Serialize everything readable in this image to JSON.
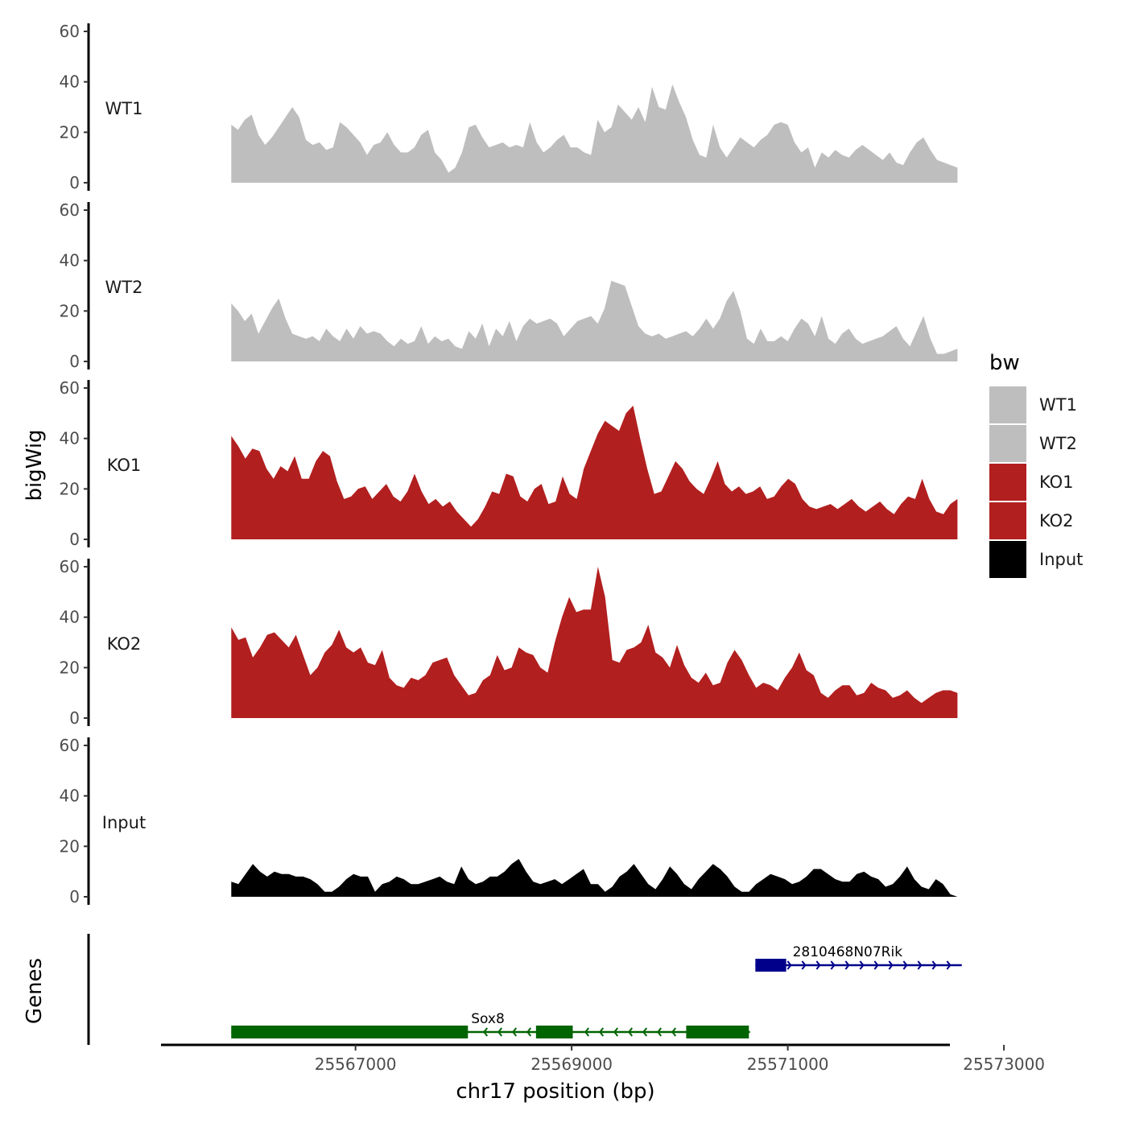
{
  "chart_data": {
    "type": "area",
    "title": "",
    "xlabel": "chr17 position (bp)",
    "ylabel": "bigWig",
    "genes_label": "Genes",
    "xlim": [
      25565200,
      25572500
    ],
    "ylim": [
      0,
      60
    ],
    "x_ticks": [
      25567000,
      25569000,
      25571000,
      25573000
    ],
    "x_tick_labels": [
      "25567000",
      "25569000",
      "25571000",
      "25573000"
    ],
    "y_ticks": [
      0,
      20,
      40,
      60
    ],
    "y_tick_labels": [
      "0",
      "20",
      "40",
      "60"
    ],
    "x_range_data": [
      25565850,
      25572570
    ],
    "legend": {
      "title": "bw",
      "position": "right",
      "entries": [
        {
          "label": "WT1",
          "color": "#bebebe"
        },
        {
          "label": "WT2",
          "color": "#bebebe"
        },
        {
          "label": "KO1",
          "color": "#b21f1f"
        },
        {
          "label": "KO2",
          "color": "#b21f1f"
        },
        {
          "label": "Input",
          "color": "#000000"
        }
      ]
    },
    "series": [
      {
        "name": "WT1",
        "color": "#bebebe",
        "values": [
          23,
          21,
          25,
          27,
          19,
          15,
          18,
          22,
          26,
          30,
          26,
          17,
          15,
          16,
          13,
          14,
          24,
          22,
          19,
          16,
          11,
          15,
          16,
          20,
          15,
          12,
          12,
          14,
          19,
          21,
          12,
          9,
          4,
          6,
          12,
          22,
          23,
          18,
          14,
          15,
          16,
          14,
          15,
          14,
          24,
          16,
          12,
          14,
          17,
          19,
          14,
          14,
          12,
          11,
          25,
          20,
          22,
          31,
          28,
          25,
          30,
          24,
          38,
          30,
          29,
          39,
          32,
          26,
          17,
          11,
          10,
          23,
          14,
          10,
          14,
          18,
          16,
          14,
          17,
          19,
          23,
          24,
          23,
          16,
          12,
          14,
          6,
          12,
          10,
          13,
          11,
          10,
          13,
          15,
          13,
          11,
          9,
          12,
          8,
          7,
          12,
          16,
          18,
          13,
          9,
          8,
          7,
          6
        ]
      },
      {
        "name": "WT2",
        "color": "#bebebe",
        "values": [
          23,
          20,
          16,
          19,
          11,
          16,
          21,
          25,
          17,
          11,
          10,
          9,
          10,
          8,
          13,
          10,
          8,
          13,
          9,
          14,
          11,
          12,
          11,
          8,
          6,
          9,
          7,
          8,
          14,
          7,
          10,
          8,
          9,
          6,
          5,
          12,
          9,
          15,
          6,
          13,
          10,
          16,
          8,
          14,
          17,
          15,
          16,
          17,
          15,
          10,
          13,
          16,
          17,
          18,
          15,
          21,
          32,
          31,
          30,
          22,
          14,
          11,
          10,
          11,
          9,
          10,
          11,
          12,
          10,
          13,
          17,
          13,
          17,
          24,
          28,
          20,
          9,
          7,
          13,
          8,
          8,
          10,
          8,
          13,
          17,
          15,
          10,
          18,
          9,
          7,
          11,
          13,
          9,
          7,
          8,
          9,
          10,
          12,
          14,
          9,
          6,
          12,
          18,
          9,
          3,
          3,
          4,
          5
        ]
      },
      {
        "name": "KO1",
        "color": "#b21f1f",
        "values": [
          41,
          37,
          32,
          36,
          35,
          28,
          24,
          29,
          27,
          33,
          24,
          24,
          31,
          35,
          33,
          23,
          16,
          17,
          20,
          21,
          16,
          19,
          22,
          17,
          15,
          19,
          26,
          19,
          14,
          16,
          13,
          15,
          11,
          8,
          5,
          8,
          13,
          19,
          18,
          26,
          25,
          17,
          15,
          20,
          22,
          14,
          15,
          25,
          18,
          16,
          28,
          35,
          42,
          47,
          45,
          43,
          50,
          53,
          40,
          28,
          18,
          19,
          25,
          31,
          28,
          23,
          20,
          18,
          24,
          31,
          22,
          19,
          21,
          18,
          19,
          21,
          16,
          17,
          21,
          24,
          22,
          16,
          13,
          12,
          13,
          14,
          12,
          14,
          16,
          13,
          11,
          13,
          15,
          12,
          10,
          14,
          17,
          16,
          24,
          16,
          11,
          10,
          14,
          16
        ]
      },
      {
        "name": "KO2",
        "color": "#b21f1f",
        "values": [
          36,
          31,
          32,
          24,
          28,
          33,
          34,
          31,
          28,
          33,
          25,
          17,
          20,
          26,
          29,
          35,
          28,
          26,
          28,
          22,
          21,
          27,
          16,
          13,
          12,
          16,
          15,
          17,
          22,
          23,
          24,
          17,
          13,
          9,
          10,
          15,
          17,
          25,
          19,
          20,
          28,
          26,
          25,
          20,
          18,
          30,
          40,
          48,
          42,
          43,
          43,
          60,
          48,
          23,
          22,
          27,
          28,
          30,
          37,
          26,
          24,
          20,
          29,
          21,
          16,
          14,
          18,
          13,
          14,
          22,
          27,
          23,
          17,
          12,
          14,
          13,
          11,
          16,
          20,
          26,
          19,
          17,
          10,
          8,
          11,
          13,
          13,
          9,
          10,
          14,
          12,
          11,
          8,
          9,
          11,
          8,
          6,
          8,
          10,
          11,
          11,
          10
        ]
      },
      {
        "name": "Input",
        "color": "#000000",
        "values": [
          6,
          5,
          9,
          13,
          10,
          8,
          10,
          9,
          9,
          8,
          8,
          7,
          5,
          2,
          2,
          4,
          7,
          9,
          8,
          8,
          2,
          5,
          6,
          8,
          7,
          5,
          5,
          6,
          7,
          8,
          6,
          5,
          12,
          7,
          5,
          6,
          8,
          8,
          10,
          13,
          15,
          10,
          6,
          5,
          6,
          7,
          5,
          7,
          9,
          11,
          5,
          5,
          2,
          4,
          8,
          10,
          13,
          9,
          5,
          3,
          7,
          12,
          9,
          5,
          3,
          7,
          10,
          13,
          11,
          8,
          4,
          2,
          2,
          5,
          7,
          9,
          8,
          7,
          5,
          6,
          8,
          11,
          11,
          9,
          7,
          6,
          6,
          9,
          10,
          8,
          7,
          4,
          5,
          8,
          12,
          7,
          4,
          3,
          7,
          5,
          1,
          0
        ]
      }
    ],
    "genes": [
      {
        "name": "2810468N07Rik",
        "strand": "+",
        "color": "#00008b",
        "start": 25570700,
        "end": 25572610,
        "exons": [
          [
            25570700,
            25570985
          ]
        ]
      },
      {
        "name": "Sox8",
        "strand": "-",
        "color": "#006400",
        "start": 25565850,
        "end": 25570650,
        "exons": [
          [
            25565850,
            25568040
          ],
          [
            25568670,
            25569010
          ],
          [
            25570060,
            25570640
          ]
        ]
      }
    ]
  }
}
